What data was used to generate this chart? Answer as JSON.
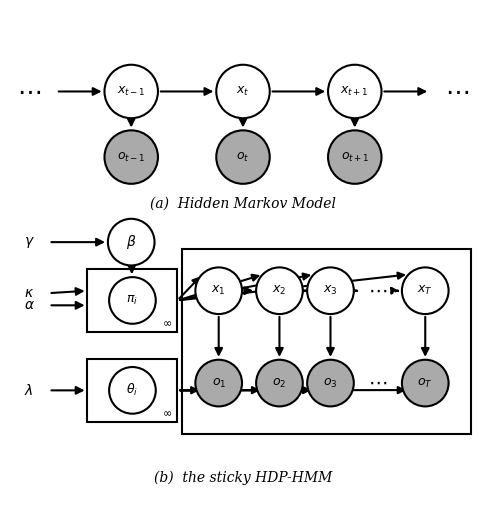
{
  "fig_width": 4.86,
  "fig_height": 5.28,
  "dpi": 100,
  "bg_color": "#ffffff",
  "node_color_white": "#ffffff",
  "node_color_gray": "#aaaaaa",
  "node_edge_color": "#000000",
  "caption_a": "(a)  Hidden Markov Model",
  "caption_b": "(b)  the sticky HDP-HMM"
}
